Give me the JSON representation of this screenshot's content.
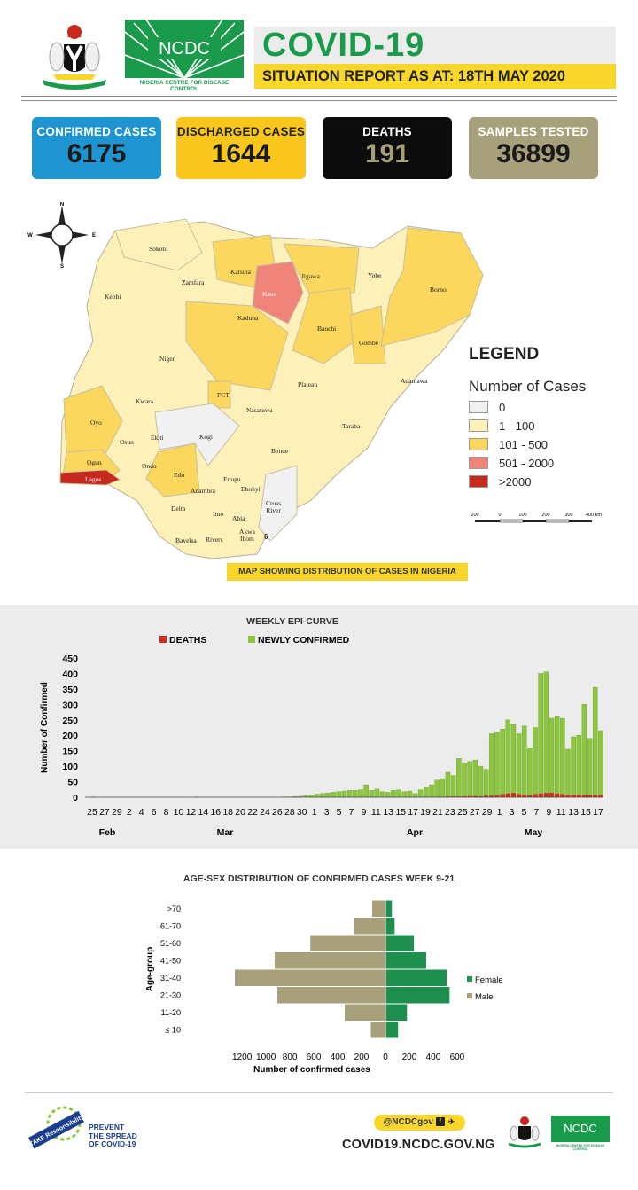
{
  "header": {
    "ncdc_logo_text": "NCDC",
    "ncdc_subtitle": "NIGERIA CENTRE FOR DISEASE CONTROL",
    "title": "COVID-19",
    "situation_report": "SITUATION REPORT AS AT: 18TH MAY 2020"
  },
  "stats": [
    {
      "label": "CONFIRMED CASES",
      "value": "6175",
      "bg": "#1e95d0",
      "label_color": "#ffffff",
      "value_color": "#1a1a1a"
    },
    {
      "label": "DISCHARGED CASES",
      "value": "1644",
      "bg": "#f9c71b",
      "label_color": "#222222",
      "value_color": "#1a1a1a"
    },
    {
      "label": "DEATHS",
      "value": "191",
      "bg": "#0c0c0c",
      "label_color": "#ffffff",
      "value_color": "#a6a07a"
    },
    {
      "label": "SAMPLES TESTED",
      "value": "36899",
      "bg": "#a8a07a",
      "label_color": "#ffffff",
      "value_color": "#1a1a1a"
    }
  ],
  "map": {
    "compass": {
      "n": "N",
      "s": "S",
      "e": "E",
      "w": "W"
    },
    "states": [
      {
        "name": "Sokoto",
        "level": "1-100"
      },
      {
        "name": "Zamfara",
        "level": "1-100"
      },
      {
        "name": "Kebbi",
        "level": "1-100"
      },
      {
        "name": "Katsina",
        "level": "101-500"
      },
      {
        "name": "Kano",
        "level": "501-2000"
      },
      {
        "name": "Jigawa",
        "level": "101-500"
      },
      {
        "name": "Yobe",
        "level": "1-100"
      },
      {
        "name": "Borno",
        "level": "101-500"
      },
      {
        "name": "Bauchi",
        "level": "101-500"
      },
      {
        "name": "Gombe",
        "level": "101-500"
      },
      {
        "name": "Kaduna",
        "level": "101-500"
      },
      {
        "name": "Niger",
        "level": "1-100"
      },
      {
        "name": "FCT",
        "level": "101-500"
      },
      {
        "name": "Plateau",
        "level": "1-100"
      },
      {
        "name": "Adamawa",
        "level": "1-100"
      },
      {
        "name": "Kwara",
        "level": "1-100"
      },
      {
        "name": "Nasarawa",
        "level": "1-100"
      },
      {
        "name": "Oyo",
        "level": "101-500"
      },
      {
        "name": "Osun",
        "level": "1-100"
      },
      {
        "name": "Ekiti",
        "level": "1-100"
      },
      {
        "name": "Kogi",
        "level": "0"
      },
      {
        "name": "Taraba",
        "level": "1-100"
      },
      {
        "name": "Ogun",
        "level": "101-500"
      },
      {
        "name": "Ondo",
        "level": "1-100"
      },
      {
        "name": "Benue",
        "level": "1-100"
      },
      {
        "name": "Lagos",
        "level": ">2000"
      },
      {
        "name": "Edo",
        "level": "101-500"
      },
      {
        "name": "Enugu",
        "level": "1-100"
      },
      {
        "name": "Anambra",
        "level": "1-100"
      },
      {
        "name": "Ebonyi",
        "level": "1-100"
      },
      {
        "name": "Cross River",
        "level": "0"
      },
      {
        "name": "Delta",
        "level": "1-100"
      },
      {
        "name": "Imo",
        "level": "1-100"
      },
      {
        "name": "Abia",
        "level": "1-100"
      },
      {
        "name": "Akwa Ibom",
        "level": "1-100"
      },
      {
        "name": "Bayelsa",
        "level": "1-100"
      },
      {
        "name": "Rivers",
        "level": "1-100"
      }
    ],
    "inset_label": "6",
    "legend_title": "LEGEND",
    "legend_subtitle": "Number of Cases",
    "legend_items": [
      {
        "label": "0",
        "color": "#f1f1f1"
      },
      {
        "label": "1 - 100",
        "color": "#fdf0b8"
      },
      {
        "label": "101 - 500",
        "color": "#fbd75e"
      },
      {
        "label": "501 - 2000",
        "color": "#f0837a"
      },
      {
        "label": ">2000",
        "color": "#c62a1e"
      }
    ],
    "scale_labels": [
      "100",
      "0",
      "100",
      "200",
      "300",
      "400 km"
    ],
    "caption": "MAP SHOWING DISTRIBUTION OF CASES IN NIGERIA"
  },
  "chart_data": [
    {
      "type": "bar",
      "title": "WEEKLY EPI-CURVE",
      "ylabel": "Number of Confirmed",
      "ylim": [
        0,
        450
      ],
      "yticks": [
        0,
        50,
        100,
        150,
        200,
        250,
        300,
        350,
        400,
        450
      ],
      "legend_position": "top",
      "x_tick_labels": [
        "25",
        "27",
        "29",
        "2",
        "4",
        "6",
        "8",
        "10",
        "12",
        "14",
        "16",
        "18",
        "20",
        "22",
        "24",
        "26",
        "28",
        "30",
        "1",
        "3",
        "5",
        "7",
        "9",
        "11",
        "13",
        "15",
        "17",
        "19",
        "21",
        "23",
        "25",
        "27",
        "29",
        "1",
        "3",
        "5",
        "7",
        "9",
        "11",
        "13",
        "15",
        "17"
      ],
      "month_labels": [
        "Feb",
        "Mar",
        "Apr",
        "May"
      ],
      "series": [
        {
          "name": "NEWLY CONFIRMED",
          "color": "#8cc63f",
          "values": [
            0,
            1,
            0,
            0,
            0,
            0,
            0,
            0,
            0,
            0,
            0,
            0,
            0,
            0,
            0,
            0,
            0,
            0,
            0,
            0,
            1,
            0,
            0,
            0,
            0,
            0,
            0,
            0,
            0,
            0,
            0,
            0,
            0,
            0,
            0,
            0,
            1,
            1,
            2,
            3,
            5,
            8,
            10,
            12,
            14,
            16,
            18,
            20,
            22,
            22,
            24,
            40,
            22,
            26,
            18,
            16,
            22,
            24,
            18,
            20,
            12,
            24,
            32,
            40,
            55,
            60,
            80,
            70,
            125,
            110,
            115,
            120,
            100,
            90,
            205,
            210,
            220,
            250,
            235,
            205,
            230,
            160,
            225,
            400,
            405,
            255,
            260,
            255,
            155,
            195,
            200,
            300,
            190,
            355,
            215
          ]
        },
        {
          "name": "DEATHS",
          "color": "#d32a1e",
          "values": [
            0,
            0,
            0,
            0,
            0,
            0,
            0,
            0,
            0,
            0,
            0,
            0,
            0,
            0,
            0,
            0,
            0,
            0,
            0,
            0,
            0,
            0,
            0,
            0,
            0,
            0,
            0,
            0,
            0,
            0,
            0,
            0,
            0,
            0,
            0,
            0,
            0,
            0,
            0,
            0,
            0,
            0,
            0,
            0,
            0,
            0,
            0,
            0,
            0,
            1,
            0,
            1,
            0,
            0,
            0,
            0,
            0,
            0,
            0,
            0,
            0,
            0,
            1,
            1,
            1,
            1,
            2,
            2,
            2,
            3,
            4,
            4,
            3,
            5,
            5,
            6,
            10,
            12,
            14,
            10,
            8,
            6,
            10,
            12,
            14,
            14,
            12,
            10,
            8,
            8,
            8,
            8,
            8,
            8,
            8
          ]
        }
      ]
    },
    {
      "type": "bar",
      "orientation": "horizontal",
      "title": "AGE-SEX DISTRIBUTION OF CONFIRMED CASES WEEK 9-21",
      "xlabel": "Number of confirmed cases",
      "ylabel": "Age-group",
      "categories": [
        ">70",
        "61-70",
        "51-60",
        "41-50",
        "31-40",
        "21-30",
        "11-20",
        "≤ 10"
      ],
      "xticks": [
        "1200",
        "1000",
        "800",
        "600",
        "400",
        "200",
        "0",
        "200",
        "400",
        "600"
      ],
      "legend_position": "right",
      "series": [
        {
          "name": "Female",
          "color": "#1f8f4f",
          "values": [
            50,
            70,
            210,
            300,
            450,
            470,
            160,
            95
          ]
        },
        {
          "name": "Male",
          "color": "#a8a07a",
          "values": [
            100,
            230,
            550,
            810,
            1100,
            790,
            300,
            110
          ]
        }
      ]
    }
  ],
  "footer": {
    "take_responsibility": "TAKE Responsibility",
    "prevent_line1": "PREVENT",
    "prevent_line2": "THE SPREAD",
    "prevent_line3": "OF COVID-19",
    "social_handle": "@NCDCgov",
    "website": "COVID19.NCDC.GOV.NG",
    "ncdc_logo_text": "NCDC",
    "ncdc_subtitle": "NIGERIA CENTRE FOR DISEASE CONTROL"
  }
}
